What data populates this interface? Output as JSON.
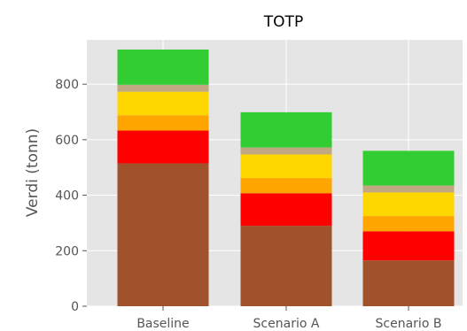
{
  "chart_data": {
    "type": "bar",
    "stacked": true,
    "title": "TOTP",
    "xlabel": "",
    "ylabel": "Verdi (tonn)",
    "categories": [
      "Baseline",
      "Scenario A",
      "Scenario B"
    ],
    "ylim": [
      0,
      960
    ],
    "yticks": [
      0,
      200,
      400,
      600,
      800
    ],
    "ytick_labels": [
      "0",
      "200",
      "400",
      "600",
      "800"
    ],
    "grid": true,
    "background": "#e5e5e5",
    "series": [
      {
        "color": "#a0522d",
        "values": [
          515,
          290,
          165
        ]
      },
      {
        "color": "#ff0000",
        "values": [
          118,
          117,
          105
        ]
      },
      {
        "color": "#ffa500",
        "values": [
          55,
          55,
          55
        ]
      },
      {
        "color": "#ffd700",
        "values": [
          85,
          85,
          85
        ]
      },
      {
        "color": "#c0a882",
        "values": [
          25,
          25,
          25
        ]
      },
      {
        "color": "#32cd32",
        "values": [
          127,
          127,
          125
        ]
      }
    ]
  }
}
